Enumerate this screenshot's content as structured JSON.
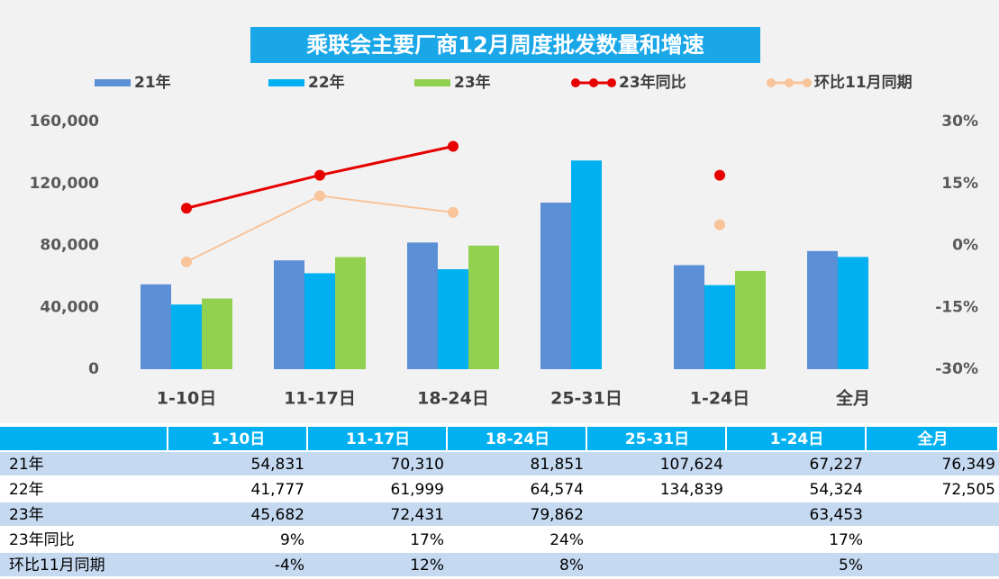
{
  "chart_data": {
    "type": "bar",
    "title": "乘联会主要厂商12月周度批发数量和增速",
    "categories": [
      "1-10日",
      "11-17日",
      "18-24日",
      "25-31日",
      "1-24日",
      "全月"
    ],
    "series": [
      {
        "name": "21年",
        "color": "#5b8fd6",
        "values": [
          54831,
          70310,
          81851,
          107624,
          67227,
          76349
        ],
        "value_labels": [
          "54,831",
          "70,310",
          "81,851",
          "107,624",
          "67,227",
          "76,349"
        ]
      },
      {
        "name": "22年",
        "color": "#00b0f0",
        "values": [
          41777,
          61999,
          64574,
          134839,
          54324,
          72505
        ],
        "value_labels": [
          "41,777",
          "61,999",
          "64,574",
          "134,839",
          "54,324",
          "72,505"
        ]
      },
      {
        "name": "23年",
        "color": "#92d050",
        "values": [
          45682,
          72431,
          79862,
          null,
          63453,
          null
        ],
        "value_labels": [
          "45,682",
          "72,431",
          "79,862",
          null,
          "63,453",
          null
        ]
      },
      {
        "name": "23年同比",
        "type": "line",
        "axis": "y2",
        "color": "#e60000",
        "values": [
          9,
          17,
          24,
          null,
          17,
          null
        ],
        "value_labels": [
          "9%",
          "17%",
          "24%",
          null,
          "17%",
          null
        ]
      },
      {
        "name": "环比11月同期",
        "type": "line",
        "axis": "y2",
        "color": "#f8c49a",
        "values": [
          -4,
          12,
          8,
          null,
          5,
          null
        ],
        "value_labels": [
          "-4%",
          "12%",
          "8%",
          null,
          "5%",
          null
        ]
      }
    ],
    "ylim": [
      0,
      160000
    ],
    "yticks": [
      0,
      {
        "value": 40000,
        "label": "40,000"
      },
      {
        "value": 80000,
        "label": "80,000"
      },
      {
        "value": 120000,
        "label": "120,000"
      },
      {
        "value": 160000,
        "label": "160,000"
      }
    ],
    "y2lim": [
      -30,
      30
    ],
    "y2ticks": [
      {
        "value": -30,
        "label": "-30%"
      },
      {
        "value": -15,
        "label": "-15%"
      },
      {
        "value": 0,
        "label": "0%"
      },
      {
        "value": 15,
        "label": "15%"
      },
      {
        "value": 30,
        "label": "30%"
      }
    ],
    "grid": false,
    "legend": "top"
  }
}
